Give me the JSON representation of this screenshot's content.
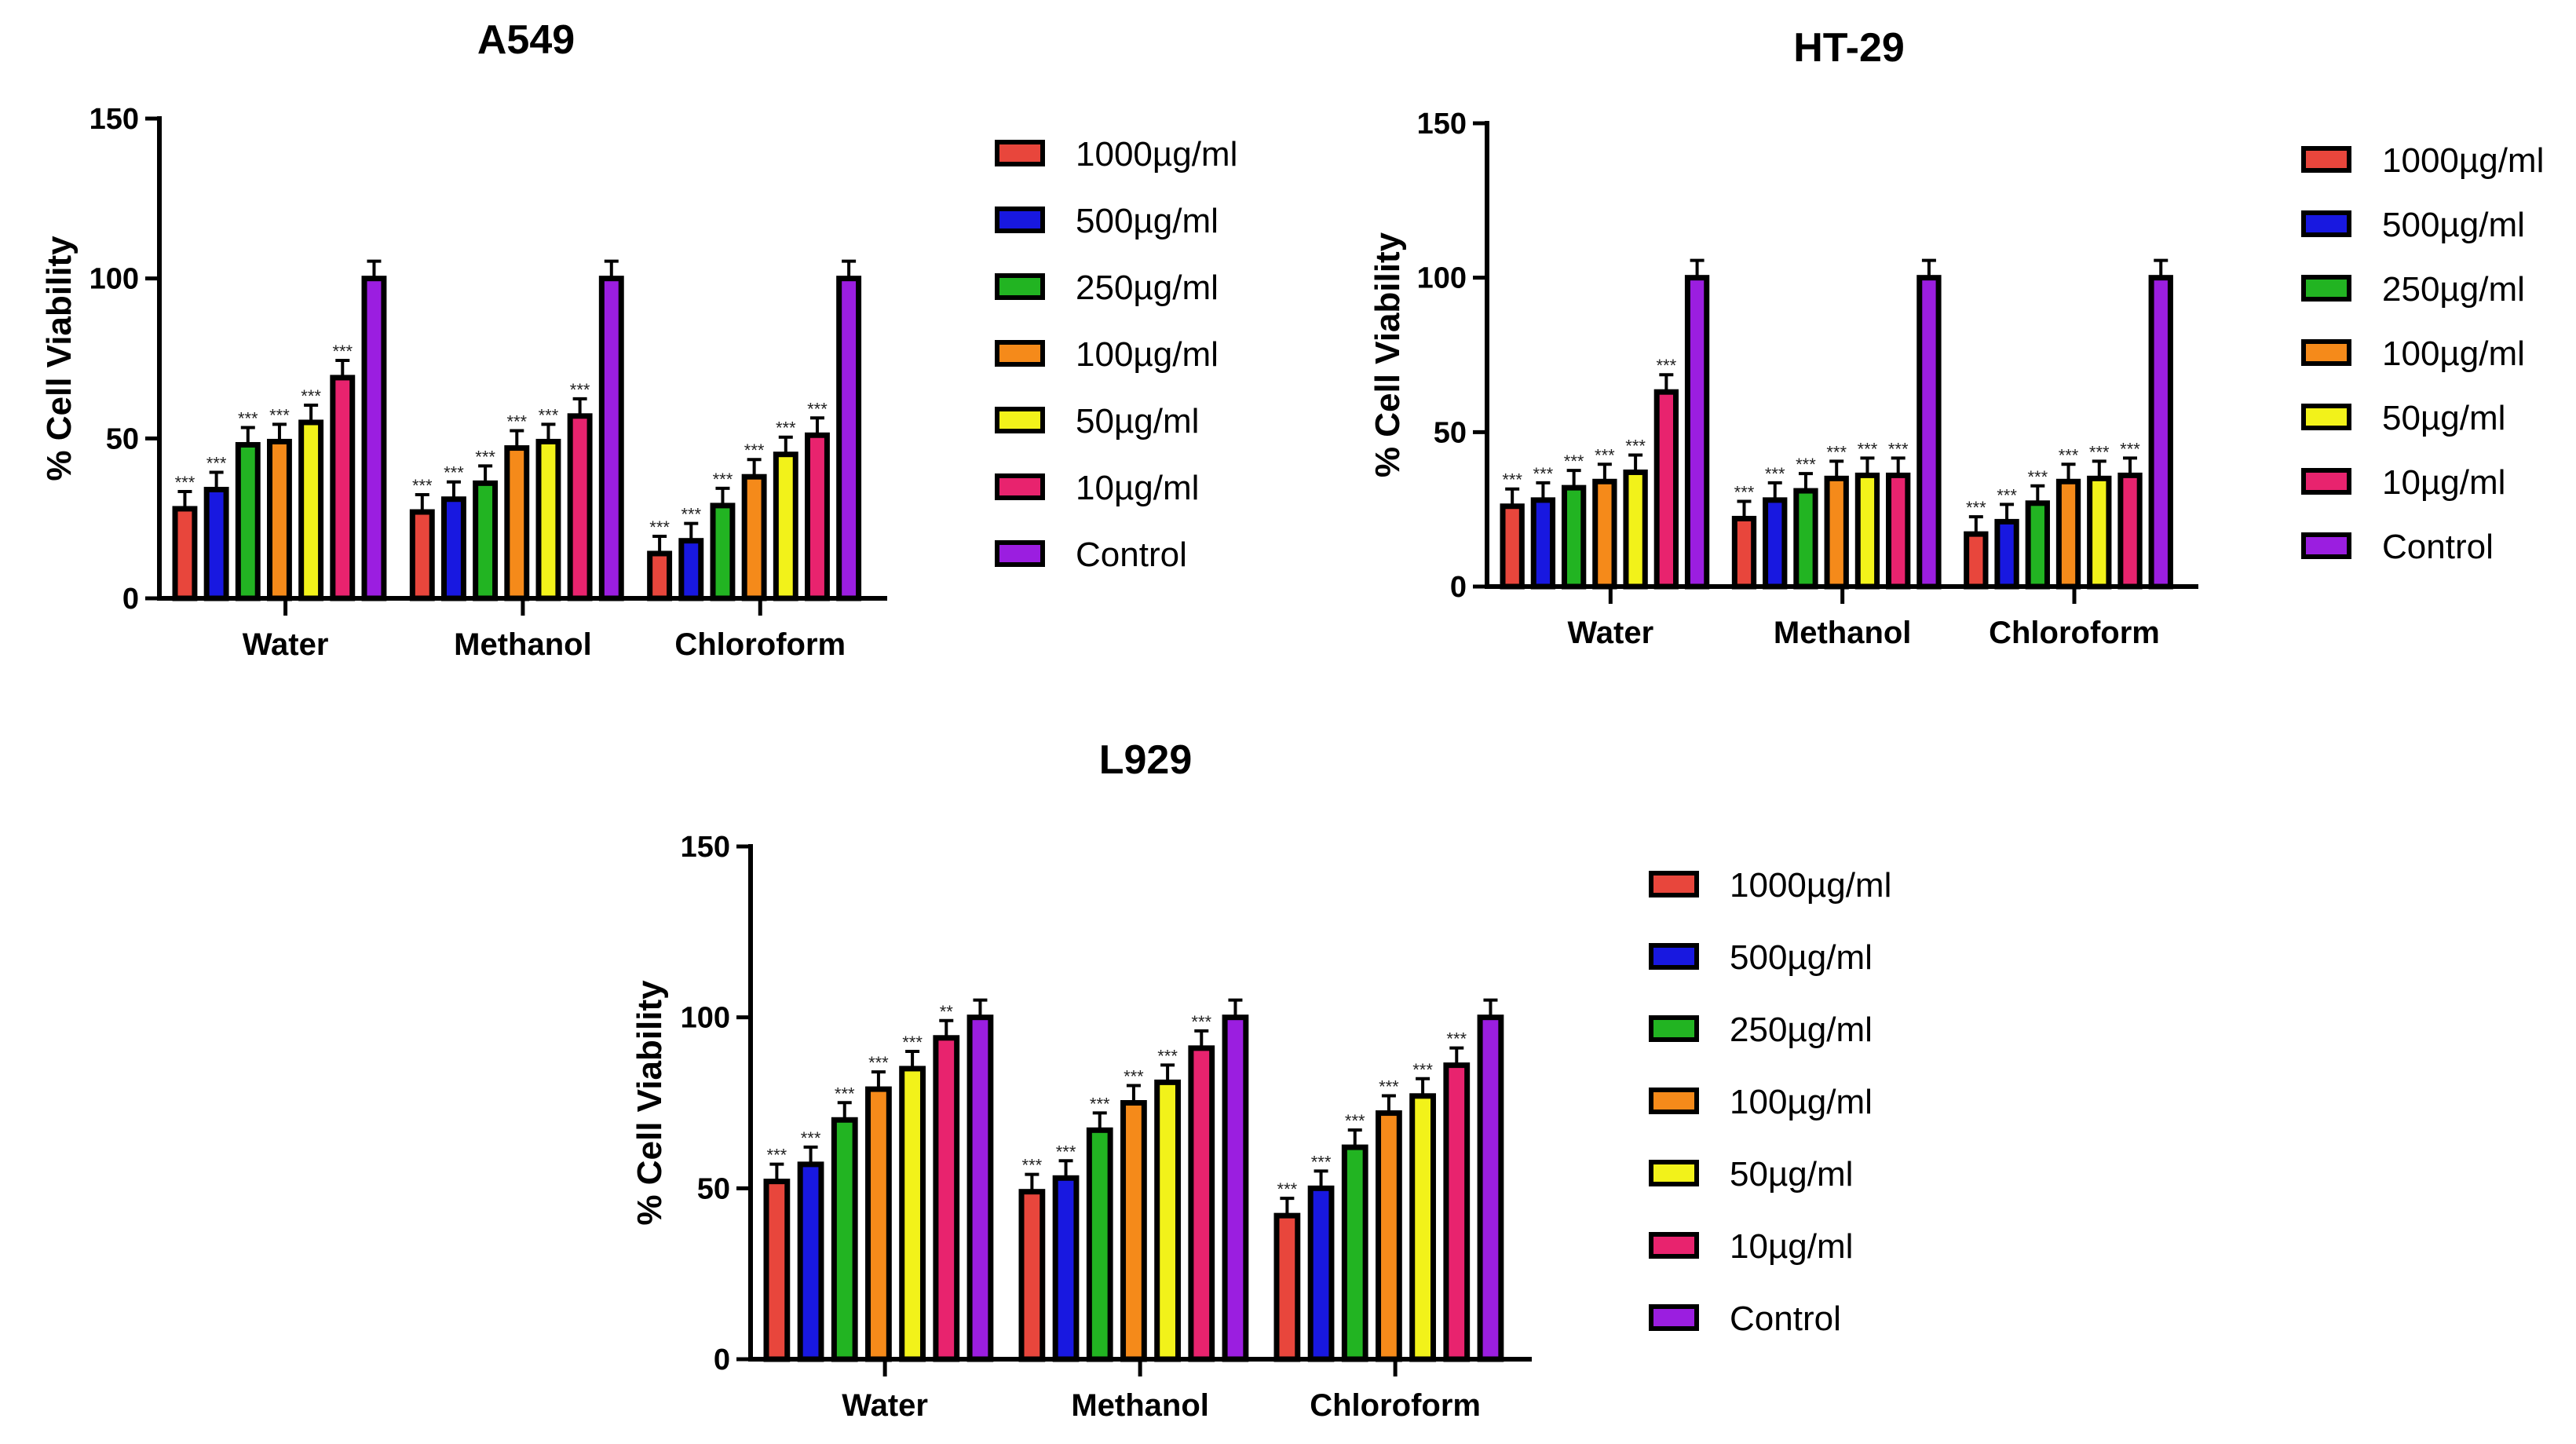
{
  "chart_data": [
    {
      "type": "bar",
      "title": "A549",
      "ylabel": "% Cell Viability",
      "xlabel": "",
      "ylim": [
        0,
        150
      ],
      "yticks": [
        "0",
        "50",
        "100",
        "150"
      ],
      "categories": [
        "Water",
        "Methanol",
        "Chloroform"
      ],
      "legend_placement": "right",
      "series": [
        {
          "name": "1000µg/ml",
          "values": [
            28,
            27,
            14
          ],
          "sig": [
            "***",
            "***",
            "***"
          ]
        },
        {
          "name": "500µg/ml",
          "values": [
            34,
            31,
            18
          ],
          "sig": [
            "***",
            "***",
            "***"
          ]
        },
        {
          "name": "250µg/ml",
          "values": [
            48,
            36,
            29
          ],
          "sig": [
            "***",
            "***",
            "***"
          ]
        },
        {
          "name": "100µg/ml",
          "values": [
            49,
            47,
            38
          ],
          "sig": [
            "***",
            "***",
            "***"
          ]
        },
        {
          "name": "50µg/ml",
          "values": [
            55,
            49,
            45
          ],
          "sig": [
            "***",
            "***",
            "***"
          ]
        },
        {
          "name": "10µg/ml",
          "values": [
            69,
            57,
            51
          ],
          "sig": [
            "***",
            "***",
            "***"
          ]
        },
        {
          "name": "Control",
          "values": [
            100,
            100,
            100
          ],
          "sig": [
            "",
            "",
            ""
          ]
        }
      ]
    },
    {
      "type": "bar",
      "title": "HT-29",
      "ylabel": "% Cell Viability",
      "xlabel": "",
      "ylim": [
        0,
        150
      ],
      "yticks": [
        "0",
        "50",
        "100",
        "150"
      ],
      "categories": [
        "Water",
        "Methanol",
        "Chloroform"
      ],
      "legend_placement": "right",
      "series": [
        {
          "name": "1000µg/ml",
          "values": [
            26,
            22,
            17
          ],
          "sig": [
            "***",
            "***",
            "***"
          ]
        },
        {
          "name": "500µg/ml",
          "values": [
            28,
            28,
            21
          ],
          "sig": [
            "***",
            "***",
            "***"
          ]
        },
        {
          "name": "250µg/ml",
          "values": [
            32,
            31,
            27
          ],
          "sig": [
            "***",
            "***",
            "***"
          ]
        },
        {
          "name": "100µg/ml",
          "values": [
            34,
            35,
            34
          ],
          "sig": [
            "***",
            "***",
            "***"
          ]
        },
        {
          "name": "50µg/ml",
          "values": [
            37,
            36,
            35
          ],
          "sig": [
            "***",
            "***",
            "***"
          ]
        },
        {
          "name": "10µg/ml",
          "values": [
            63,
            36,
            36
          ],
          "sig": [
            "***",
            "***",
            "***"
          ]
        },
        {
          "name": "Control",
          "values": [
            100,
            100,
            100
          ],
          "sig": [
            "",
            "",
            ""
          ]
        }
      ]
    },
    {
      "type": "bar",
      "title": "L929",
      "ylabel": "% Cell Viability",
      "xlabel": "",
      "ylim": [
        0,
        150
      ],
      "yticks": [
        "0",
        "50",
        "100",
        "150"
      ],
      "categories": [
        "Water",
        "Methanol",
        "Chloroform"
      ],
      "legend_placement": "right",
      "series": [
        {
          "name": "1000µg/ml",
          "values": [
            52,
            49,
            42
          ],
          "sig": [
            "***",
            "***",
            "***"
          ]
        },
        {
          "name": "500µg/ml",
          "values": [
            57,
            53,
            50
          ],
          "sig": [
            "***",
            "***",
            "***"
          ]
        },
        {
          "name": "250µg/ml",
          "values": [
            70,
            67,
            62
          ],
          "sig": [
            "***",
            "***",
            "***"
          ]
        },
        {
          "name": "100µg/ml",
          "values": [
            79,
            75,
            72
          ],
          "sig": [
            "***",
            "***",
            "***"
          ]
        },
        {
          "name": "50µg/ml",
          "values": [
            85,
            81,
            77
          ],
          "sig": [
            "***",
            "***",
            "***"
          ]
        },
        {
          "name": "10µg/ml",
          "values": [
            94,
            91,
            86
          ],
          "sig": [
            "**",
            "***",
            "***"
          ]
        },
        {
          "name": "Control",
          "values": [
            100,
            100,
            100
          ],
          "sig": [
            "",
            "",
            ""
          ]
        }
      ]
    }
  ],
  "colors": [
    "#e8463c",
    "#1818e0",
    "#22b422",
    "#f58a1a",
    "#f2f21a",
    "#e8236e",
    "#9b1ee0"
  ]
}
